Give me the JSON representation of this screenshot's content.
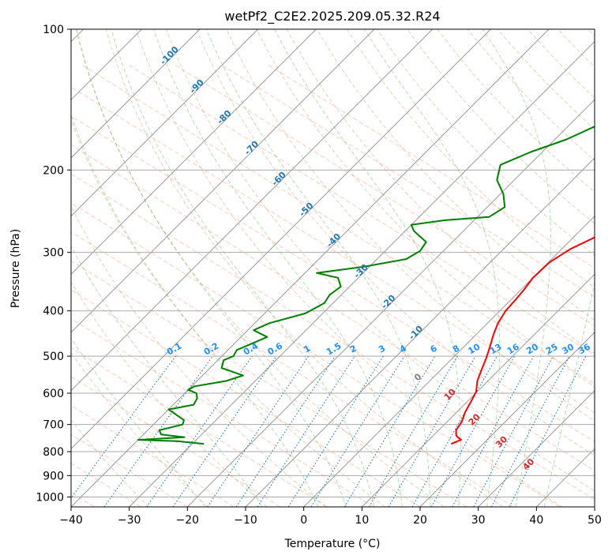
{
  "chart_data": {
    "type": "line",
    "subtype": "skew-t log-p diagram",
    "title": "wetPf2_C2E2.2025.209.05.32.R24",
    "xlabel": "Temperature (°C)",
    "ylabel": "Pressure (hPa)",
    "xlim": [
      -40,
      50
    ],
    "ylim": [
      1050,
      100
    ],
    "y_scale": "log",
    "grid": true,
    "x_ticks": [
      -40,
      -30,
      -20,
      -10,
      0,
      10,
      20,
      30,
      40,
      50
    ],
    "x_tick_labels": [
      "−40",
      "−30",
      "−20",
      "−10",
      "0",
      "10",
      "20",
      "30",
      "40",
      "50"
    ],
    "y_ticks": [
      1000,
      900,
      800,
      700,
      600,
      500,
      400,
      300,
      200,
      100
    ],
    "y_tick_labels": [
      "1000",
      "900",
      "800",
      "700",
      "600",
      "500",
      "400",
      "300",
      "200",
      "100"
    ],
    "isotherm_labels": [
      "-100",
      "-90",
      "-80",
      "-70",
      "-60",
      "-50",
      "-40",
      "-30",
      "-20",
      "-10"
    ],
    "isotherm_label_values": [
      -100,
      -90,
      -80,
      -70,
      -60,
      -50,
      -40,
      -30,
      -20,
      -10
    ],
    "mixing_ratio_labels": [
      "0.1",
      "0.2",
      "0.4",
      "0.6",
      "1",
      "1.5",
      "2",
      "3",
      "4",
      "6",
      "8",
      "10",
      "13",
      "16",
      "20",
      "25",
      "30",
      "36"
    ],
    "mixing_ratio_values": [
      0.1,
      0.2,
      0.4,
      0.6,
      1,
      1.5,
      2,
      3,
      4,
      6,
      8,
      10,
      13,
      16,
      20,
      25,
      30,
      36
    ],
    "moist_adiabat_labels": [
      "0",
      "10",
      "20",
      "30",
      "40"
    ],
    "moist_adiabat_values": [
      0,
      10,
      20,
      30,
      40
    ],
    "series": [
      {
        "type": "temperature",
        "color": "#ff0000",
        "points": [
          [
            14.5,
            770
          ],
          [
            15.5,
            755
          ],
          [
            14.0,
            740
          ],
          [
            13.0,
            720
          ],
          [
            12.5,
            690
          ],
          [
            11.5,
            660
          ],
          [
            10.5,
            620
          ],
          [
            9.8,
            595
          ],
          [
            8.2,
            565
          ],
          [
            7.0,
            535
          ],
          [
            5.8,
            505
          ],
          [
            4.5,
            478
          ],
          [
            3.0,
            450
          ],
          [
            1.8,
            425
          ],
          [
            1.0,
            400
          ],
          [
            0.8,
            380
          ],
          [
            0.5,
            360
          ],
          [
            0.0,
            340
          ],
          [
            0.2,
            315
          ],
          [
            1.5,
            295
          ],
          [
            3.5,
            280
          ],
          [
            5.0,
            265
          ],
          [
            5.3,
            250
          ],
          [
            6.0,
            235
          ],
          [
            8.0,
            222
          ],
          [
            9.2,
            205
          ],
          [
            9.5,
            190
          ],
          [
            9.3,
            178
          ],
          [
            9.8,
            165
          ],
          [
            11.0,
            150
          ],
          [
            12.5,
            138
          ],
          [
            13.2,
            125
          ],
          [
            13.3,
            115
          ],
          [
            14.0,
            108
          ],
          [
            15.3,
            100
          ]
        ]
      },
      {
        "type": "dewpoint",
        "color": "#008000",
        "points": [
          [
            -28.0,
            770
          ],
          [
            -33.0,
            760
          ],
          [
            -40.0,
            755
          ],
          [
            -32.5,
            745
          ],
          [
            -37.0,
            735
          ],
          [
            -38.0,
            720
          ],
          [
            -35.0,
            700
          ],
          [
            -35.5,
            685
          ],
          [
            -40.0,
            650
          ],
          [
            -36.5,
            635
          ],
          [
            -37.0,
            615
          ],
          [
            -38.0,
            600
          ],
          [
            -40.0,
            590
          ],
          [
            -39.5,
            580
          ],
          [
            -35.0,
            565
          ],
          [
            -33.0,
            550
          ],
          [
            -38.0,
            530
          ],
          [
            -39.0,
            510
          ],
          [
            -38.0,
            500
          ],
          [
            -38.5,
            485
          ],
          [
            -37.0,
            470
          ],
          [
            -35.5,
            455
          ],
          [
            -39.0,
            440
          ],
          [
            -37.5,
            425
          ],
          [
            -33.0,
            405
          ],
          [
            -31.5,
            385
          ],
          [
            -32.0,
            370
          ],
          [
            -31.5,
            355
          ],
          [
            -33.5,
            340
          ],
          [
            -38.0,
            332
          ],
          [
            -31.0,
            322
          ],
          [
            -25.0,
            310
          ],
          [
            -24.0,
            298
          ],
          [
            -24.5,
            285
          ],
          [
            -28.5,
            270
          ],
          [
            -30.0,
            262
          ],
          [
            -25.0,
            256
          ],
          [
            -18.0,
            252
          ],
          [
            -17.0,
            240
          ],
          [
            -19.5,
            225
          ],
          [
            -23.0,
            210
          ],
          [
            -25.0,
            195
          ],
          [
            -22.0,
            183
          ],
          [
            -18.0,
            172
          ],
          [
            -15.0,
            160
          ],
          [
            -12.5,
            150
          ],
          [
            -11.0,
            140
          ],
          [
            -10.0,
            130
          ],
          [
            -8.5,
            125
          ],
          [
            -6.5,
            120
          ],
          [
            -4.5,
            115
          ],
          [
            -2.5,
            110
          ],
          [
            -0.5,
            106
          ],
          [
            1.5,
            102
          ],
          [
            2.5,
            100
          ]
        ]
      }
    ]
  }
}
